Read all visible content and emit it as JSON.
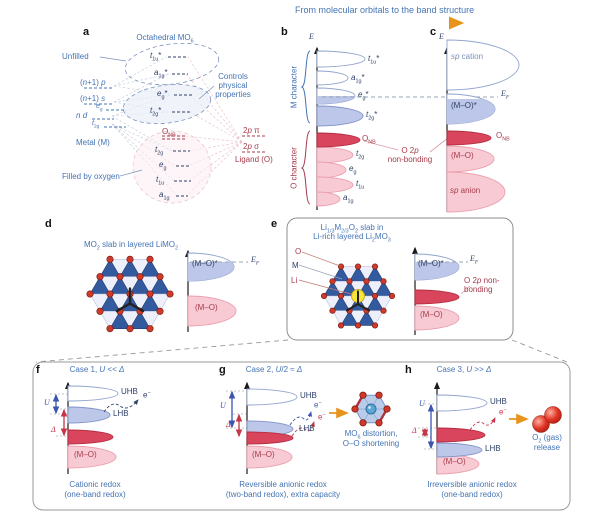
{
  "header": {
    "title": "From molecular orbitals to the band structure"
  },
  "colors": {
    "blue_text": "#4474b4",
    "navy_text": "#2e3f66",
    "dark_red_text": "#a63b4b",
    "band_blue": "#bcc7e9",
    "band_pink": "#f8cbd4",
    "band_crimson": "#d8455c",
    "band_outline": "#92a5cd",
    "arrow_orange": "#e8941c"
  },
  "panel_a": {
    "letter": "a",
    "title_html": "Octahedral MO<sub>6</sub>",
    "unfilled": "Unfilled",
    "controls_html": "Controls<br>physical<br>properties",
    "level_np_html": "(<i>n</i>+1) <i>p</i>",
    "level_ns_html": "(<i>n</i>+1) <i>s</i>",
    "level_eg_html": "<i>e</i><sub>g</sub>",
    "level_nd_html": "<i>n</i> <i>d</i>",
    "level_t2g_html": "<i>t</i><sub>2g</sub>",
    "metal": "Metal (M)",
    "filled": "Filled by oxygen",
    "mo_t1u_star_html": "<i>t</i><sub>1u</sub>*",
    "mo_a1g_star_html": "<i>a</i><sub>1g</sub>*",
    "mo_eg_star_html": "<i>e</i><sub>g</sub>*",
    "mo_t2g_star_html": "<i>t</i><sub>2g</sub>*",
    "mo_onb_html": "O<sub>NB</sub>",
    "mo_t2g_html": "<i>t</i><sub>2g</sub>",
    "mo_eg_html": "<i>e</i><sub>g</sub>",
    "mo_t1u_html": "<i>t</i><sub>1u</sub>",
    "mo_a1g_html": "<i>a</i><sub>1g</sub>",
    "p_pi_html": "2<i>p</i> π",
    "p_sigma_html": "2<i>p</i> σ",
    "ligand": "Ligand (O)"
  },
  "panel_b": {
    "letter": "b",
    "energy_html": "<i>E</i>",
    "m_character": "M character",
    "o_character": "O character",
    "t1u_star_html": "<i>t</i><sub>1u</sub>*",
    "a1g_star_html": "<i>a</i><sub>1g</sub>*",
    "eg_star_html": "<i>e</i><sub>g</sub>*",
    "t2g_star_html": "<i>t</i><sub>2g</sub>*",
    "onb_html": "O<sub>NB</sub>",
    "t2g_html": "<i>t</i><sub>2g</sub>",
    "eg_html": "<i>e</i><sub>g</sub>",
    "t1u_html": "<i>t</i><sub>1u</sub>",
    "a1g_html": "<i>a</i><sub>1g</sub>"
  },
  "between_bc": {
    "nonbonding_html": "O 2<i>p</i><br>non-bonding"
  },
  "panel_c": {
    "letter": "c",
    "energy_html": "<i>E</i>",
    "sp_cation_html": "<i>sp</i> cation",
    "fermi_html": "<i>E</i><sub>F</sub>",
    "mo_star": "(M–O)*",
    "onb_html": "O<sub>NB</sub>",
    "mo": "(M–O)",
    "sp_anion_html": "<i>sp</i> anion"
  },
  "panel_d": {
    "letter": "d",
    "title_html": "MO<sub>2</sub> slab in layered LiMO<sub>2</sub>",
    "mo_star": "(M–O)*",
    "fermi_html": "<i>E</i><sub>F</sub>",
    "mo": "(M–O)"
  },
  "panel_e": {
    "letter": "e",
    "title1_html": "Li<sub>1/3</sub>M<sub>2/3</sub>O<sub>2</sub> slab in",
    "title2_html": "Li-rich layered Li<sub>2</sub>MO<sub>3</sub>",
    "legend_o": "O",
    "legend_m": "M",
    "legend_li": "Li",
    "mo_star": "(M–O)*",
    "fermi_html": "<i>E</i><sub>F</sub>",
    "nonbonding_html": "O 2<i>p</i> non-<br>bonding",
    "mo": "(M–O)"
  },
  "panel_f": {
    "letter": "f",
    "case_html": "Case 1, <i>U</i> &lt;&lt; <i>Δ</i>",
    "u_html": "<i>U</i>",
    "delta_html": "<i>Δ</i>",
    "uhb": "UHB",
    "lhb": "LHB",
    "electron_html": "e<sup>−</sup>",
    "mo": "(M–O)",
    "caption1": "Cationic redox",
    "caption2": "(one-band redox)"
  },
  "panel_g": {
    "letter": "g",
    "case_html": "Case 2, <i>U</i>/2 ≈ <i>Δ</i>",
    "u_html": "<i>U</i>",
    "delta_html": "<i>Δ</i>",
    "uhb": "UHB",
    "lhb": "LHB",
    "electron1_html": "e<sup>−</sup>",
    "electron2_html": "e<sup>−</sup>",
    "mo": "(M–O)",
    "distortion1_html": "MO<sub>6</sub> distortion,",
    "distortion2": "O–O shortening",
    "caption1": "Reversible anionic redox",
    "caption2": "(two-band redox), extra capacity"
  },
  "panel_h": {
    "letter": "h",
    "case_html": "Case 3, <i>U</i> &gt;&gt; <i>Δ</i>",
    "u_html": "<i>U</i>",
    "delta_html": "<i>Δ</i>",
    "uhb": "UHB",
    "lhb": "LHB",
    "electron_html": "e<sup>−</sup>",
    "mo": "(M–O)",
    "o2_html": "O<sub>2</sub> (gas)",
    "release": "release",
    "caption1": "Irreversible anionic redox",
    "caption2": "(one-band redox)"
  }
}
